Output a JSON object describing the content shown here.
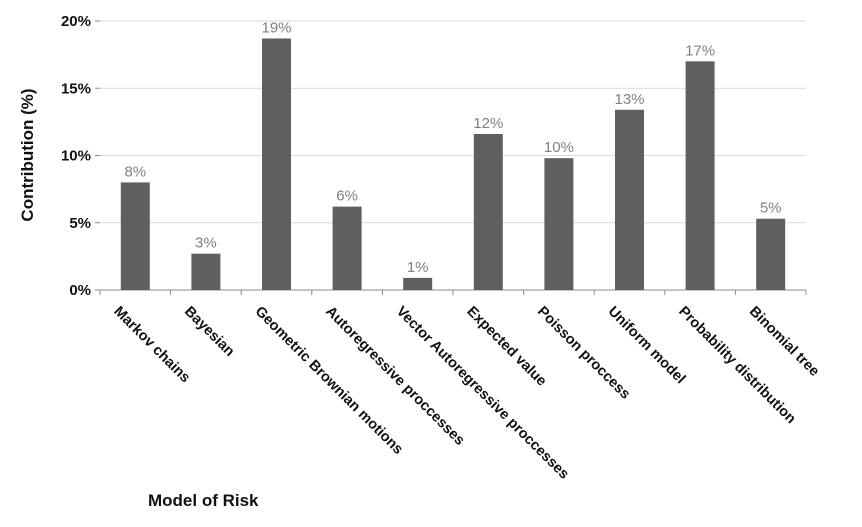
{
  "chart_data": {
    "type": "bar",
    "title": "",
    "xlabel": "Model of Risk",
    "ylabel": "Contribution (%)",
    "categories": [
      "Markov chains",
      "Bayesian",
      "Geometric Brownian motions",
      "Autoregressive proccesses",
      "Vector Autoregressive proccesses",
      "Expected value",
      "Poisson proccess",
      "Uniform model",
      "Probability distribution",
      "Binomial tree"
    ],
    "values": [
      8,
      2.7,
      18.7,
      6.2,
      0.9,
      11.6,
      9.8,
      13.4,
      17.0,
      5.3
    ],
    "data_labels": [
      "8%",
      "3%",
      "19%",
      "6%",
      "1%",
      "12%",
      "10%",
      "13%",
      "17%",
      "5%"
    ],
    "ylim": [
      0,
      20
    ],
    "yticks": [
      0,
      5,
      10,
      15,
      20
    ],
    "ytick_labels": [
      "0%",
      "5%",
      "10%",
      "15%",
      "20%"
    ],
    "grid": true,
    "legend": "none",
    "bar_color": "#5f5f5f",
    "grid_color": "#d9d9d9",
    "label_color": "#808080"
  }
}
